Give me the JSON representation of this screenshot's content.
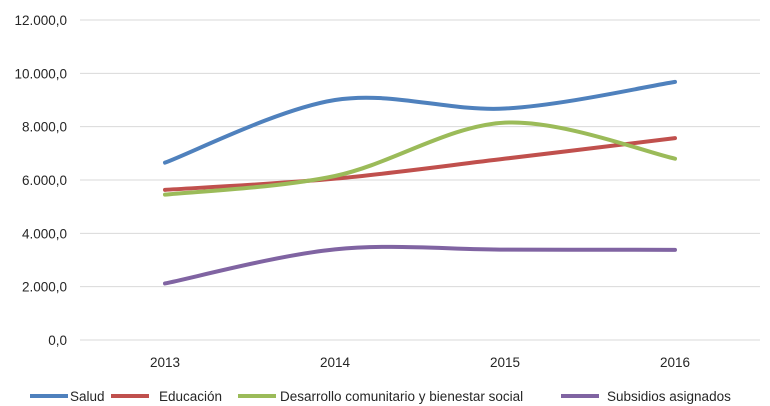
{
  "chart_data": {
    "type": "line",
    "smooth": true,
    "categories": [
      "2013",
      "2014",
      "2015",
      "2016"
    ],
    "ylim": [
      0,
      12000
    ],
    "yticks": [
      {
        "value": 0,
        "label": "0,0"
      },
      {
        "value": 2000,
        "label": "2.000,0"
      },
      {
        "value": 4000,
        "label": "4.000,0"
      },
      {
        "value": 6000,
        "label": "6.000,0"
      },
      {
        "value": 8000,
        "label": "8.000,0"
      },
      {
        "value": 10000,
        "label": "10.000,0"
      },
      {
        "value": 12000,
        "label": "12.000,0"
      }
    ],
    "grid": true,
    "legend_position": "bottom",
    "series": [
      {
        "name": "Salud",
        "color": "#4F81BD",
        "values": [
          6650,
          9000,
          8680,
          9680
        ]
      },
      {
        "name": "Educación",
        "color": "#C0504D",
        "values": [
          5630,
          6050,
          6800,
          7570
        ]
      },
      {
        "name": "Desarrollo comunitario y bienestar social",
        "color": "#9BBB59",
        "values": [
          5450,
          6150,
          8150,
          6800
        ]
      },
      {
        "name": "Subsidios asignados",
        "color": "#8064A2",
        "values": [
          2120,
          3400,
          3390,
          3380
        ]
      }
    ]
  }
}
